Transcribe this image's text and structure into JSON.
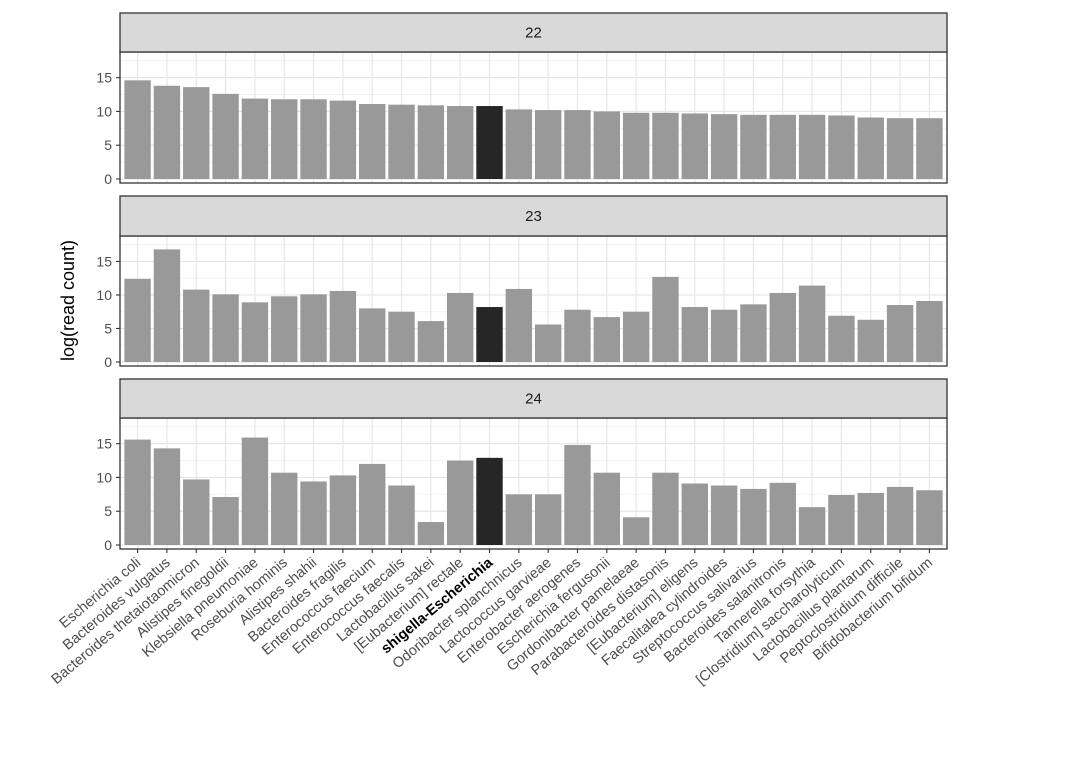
{
  "chart_data": {
    "type": "bar",
    "ylabel": "log(read count)",
    "xlabel": "",
    "ylim": [
      0,
      18.5
    ],
    "yticks": [
      0,
      5,
      10,
      15
    ],
    "highlight_category": "shigella-Escherichia",
    "colors": {
      "bar": "#999999",
      "highlight": "#262626",
      "strip": "#d9d9d9",
      "grid_major": "#e6e6e6",
      "grid_minor": "#f2f2f2",
      "border": "#333333"
    },
    "categories": [
      "Escherichia coli",
      "Bacteroides vulgatus",
      "Bacteroides thetaiotaomicron",
      "Alistipes finegoldii",
      "Klebsiella pneumoniae",
      "Roseburia hominis",
      "Alistipes shahii",
      "Bacteroides fragilis",
      "Enterococcus faecium",
      "Enterococcus faecalis",
      "Lactobacillus sakei",
      "[Eubacterium] rectale",
      "shigella-Escherichia",
      "Odoribacter splanchnicus",
      "Lactococcus garvieae",
      "Enterobacter aerogenes",
      "Escherichia fergusonii",
      "Gordonibacter pamelaeae",
      "Parabacteroides distasonis",
      "[Eubacterium] eligens",
      "Faecalitalea cylindroides",
      "Streptococcus salivarius",
      "Bacteroides salanitronis",
      "Tannerella forsythia",
      "[Clostridium] saccharolyticum",
      "Lactobacillus plantarum",
      "Peptoclostridium difficile",
      "Bifidobacterium bifidum"
    ],
    "series": [
      {
        "name": "22",
        "values": [
          14.6,
          13.8,
          13.6,
          12.6,
          11.9,
          11.8,
          11.8,
          11.6,
          11.1,
          11.0,
          10.9,
          10.8,
          10.8,
          10.3,
          10.2,
          10.2,
          10.0,
          9.8,
          9.8,
          9.7,
          9.6,
          9.5,
          9.5,
          9.5,
          9.4,
          9.1,
          9.0,
          9.0
        ]
      },
      {
        "name": "23",
        "values": [
          12.4,
          16.8,
          10.8,
          10.1,
          8.9,
          9.8,
          10.1,
          10.6,
          8.0,
          7.5,
          6.1,
          10.3,
          8.2,
          10.9,
          5.6,
          7.8,
          6.7,
          7.5,
          12.7,
          8.2,
          7.8,
          8.6,
          10.3,
          11.4,
          6.9,
          6.3,
          8.5,
          9.1
        ]
      },
      {
        "name": "24",
        "values": [
          15.6,
          14.3,
          9.7,
          7.1,
          15.9,
          10.7,
          9.4,
          10.3,
          12.0,
          8.8,
          3.4,
          12.5,
          12.9,
          7.5,
          7.5,
          14.8,
          10.7,
          4.1,
          10.7,
          9.1,
          8.8,
          8.3,
          9.2,
          5.6,
          7.4,
          7.7,
          8.6,
          8.1
        ]
      }
    ]
  }
}
